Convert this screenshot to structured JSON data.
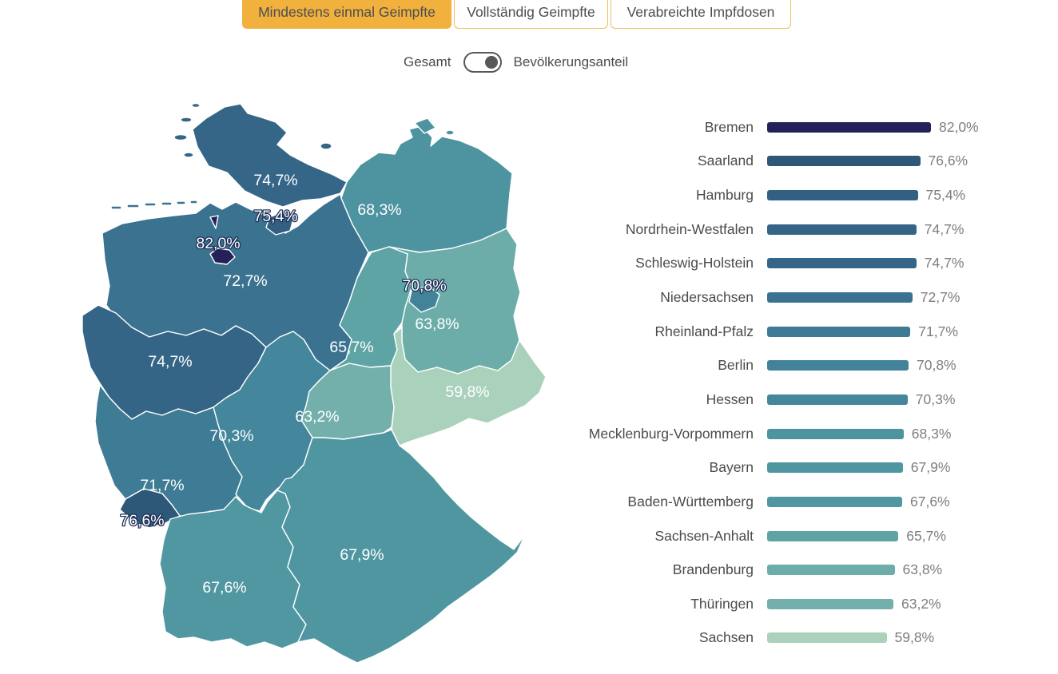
{
  "tabs": [
    {
      "label": "Mindestens einmal Geimpfte",
      "active": true
    },
    {
      "label": "Vollständig Geimpfte",
      "active": false
    },
    {
      "label": "Verabreichte Impfdosen",
      "active": false
    }
  ],
  "toggle": {
    "left_label": "Gesamt",
    "right_label": "Bevölkerungsanteil",
    "selected": "Bevölkerungsanteil"
  },
  "colors": {
    "accent_yellow": "#f2b03c",
    "tab_border_yellow": "#ecc15e",
    "text_dark": "#4b4e53",
    "text_gray": "#7e7e7e",
    "toggle_gray": "#58585a",
    "map_border": "#ffffff",
    "map_label_outline": "#1d2d56"
  },
  "chart_data": {
    "type": "bar",
    "title": "",
    "orientation": "horizontal",
    "unit": "%",
    "xlim": [
      0,
      82
    ],
    "grid": false,
    "categories": [
      "Bremen",
      "Saarland",
      "Hamburg",
      "Nordrhein-Westfalen",
      "Schleswig-Holstein",
      "Niedersachsen",
      "Rheinland-Pfalz",
      "Berlin",
      "Hessen",
      "Mecklenburg-Vorpommern",
      "Bayern",
      "Baden-Württemberg",
      "Sachsen-Anhalt",
      "Brandenburg",
      "Thüringen",
      "Sachsen"
    ],
    "values": [
      82.0,
      76.6,
      75.4,
      74.7,
      74.7,
      72.7,
      71.7,
      70.8,
      70.3,
      68.3,
      67.9,
      67.6,
      65.7,
      63.8,
      63.2,
      59.8
    ],
    "value_labels": [
      "82,0%",
      "76,6%",
      "75,4%",
      "74,7%",
      "74,7%",
      "72,7%",
      "71,7%",
      "70,8%",
      "70,3%",
      "68,3%",
      "67,9%",
      "67,6%",
      "65,7%",
      "63,8%",
      "63,2%",
      "59,8%"
    ],
    "bar_colors": [
      "#242158",
      "#2e5877",
      "#326083",
      "#346486",
      "#356687",
      "#3a7290",
      "#3e7b94",
      "#428399",
      "#44879c",
      "#4d93a0",
      "#4f96a1",
      "#5197a1",
      "#5ea4a5",
      "#6cadaa",
      "#73b0ac",
      "#a9d1bc"
    ]
  },
  "map": {
    "regions": [
      {
        "name": "Schleswig-Holstein",
        "label": "74,7%",
        "outlined": false
      },
      {
        "name": "Hamburg",
        "label": "75,4%",
        "outlined": true
      },
      {
        "name": "Bremen",
        "label": "82,0%",
        "outlined": true
      },
      {
        "name": "Mecklenburg-Vorpommern",
        "label": "68,3%",
        "outlined": false
      },
      {
        "name": "Niedersachsen",
        "label": "72,7%",
        "outlined": false
      },
      {
        "name": "Berlin",
        "label": "70,8%",
        "outlined": true
      },
      {
        "name": "Brandenburg",
        "label": "63,8%",
        "outlined": false
      },
      {
        "name": "Sachsen-Anhalt",
        "label": "65,7%",
        "outlined": false
      },
      {
        "name": "Nordrhein-Westfalen",
        "label": "74,7%",
        "outlined": false
      },
      {
        "name": "Sachsen",
        "label": "59,8%",
        "outlined": false
      },
      {
        "name": "Thüringen",
        "label": "63,2%",
        "outlined": false
      },
      {
        "name": "Hessen",
        "label": "70,3%",
        "outlined": false
      },
      {
        "name": "Rheinland-Pfalz",
        "label": "71,7%",
        "outlined": false
      },
      {
        "name": "Saarland",
        "label": "76,6%",
        "outlined": true
      },
      {
        "name": "Baden-Württemberg",
        "label": "67,6%",
        "outlined": false
      },
      {
        "name": "Bayern",
        "label": "67,9%",
        "outlined": false
      }
    ]
  }
}
